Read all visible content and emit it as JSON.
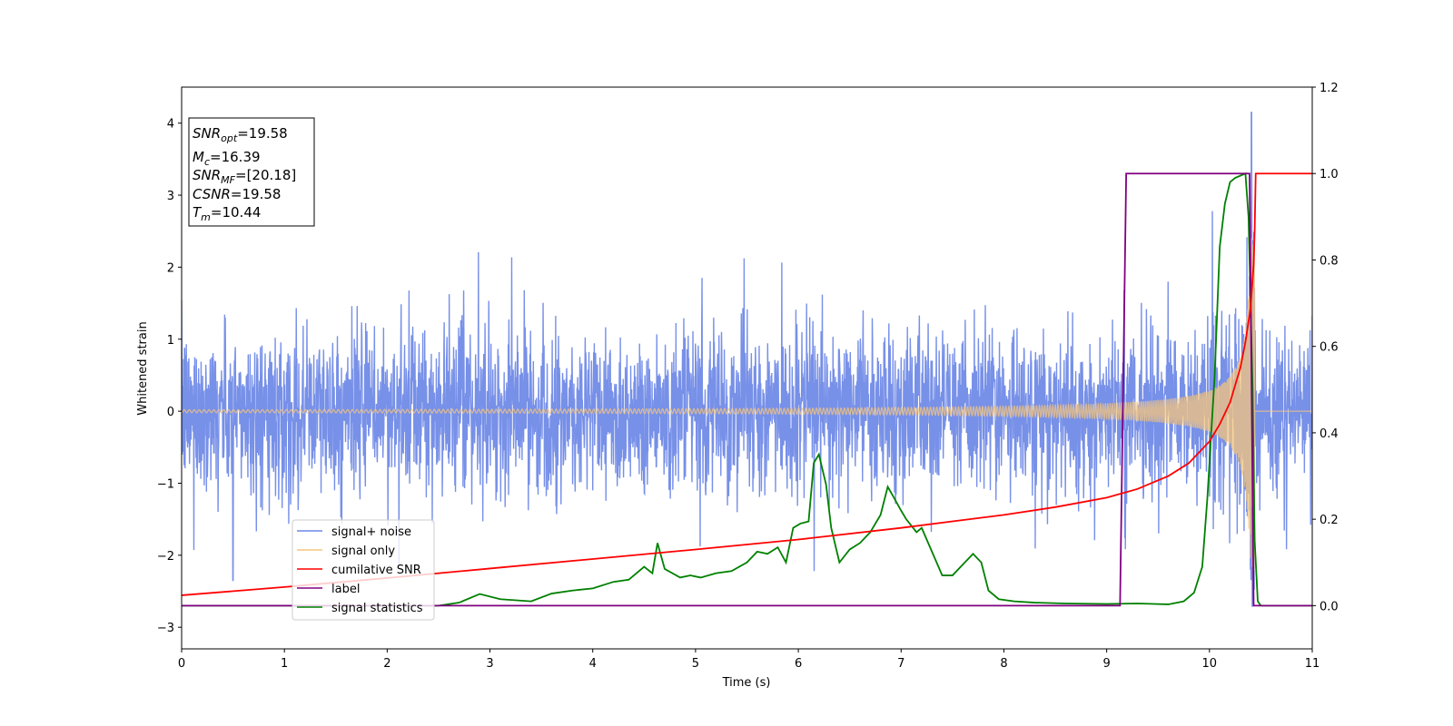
{
  "chart_data": {
    "type": "line",
    "title": "",
    "xlabel": "Time (s)",
    "ylabel": "Whitened strain",
    "xlim": [
      0,
      11
    ],
    "ylim": [
      -3.3,
      4.5
    ],
    "y2lim": [
      -0.1,
      1.2
    ],
    "x_ticks": [
      "0",
      "1",
      "2",
      "3",
      "4",
      "5",
      "6",
      "7",
      "8",
      "9",
      "10",
      "11"
    ],
    "y_ticks": [
      "−3",
      "−2",
      "−1",
      "0",
      "1",
      "2",
      "3",
      "4"
    ],
    "y2_ticks": [
      "0.0",
      "0.2",
      "0.4",
      "0.6",
      "0.8",
      "1.0",
      "1.2"
    ],
    "grid": false,
    "legend_position": "lower-left",
    "annotation": {
      "snr_opt": {
        "sym": "SNR",
        "sub": "opt",
        "val": "=19.58"
      },
      "mc": {
        "sym": "M",
        "sub": "c",
        "val": "=16.39"
      },
      "snr_mf": {
        "sym": "SNR",
        "sub": "MF",
        "val": "=[20.18]"
      },
      "csnr": {
        "sym": "CSNR",
        "val": "=19.58"
      },
      "tm": {
        "sym": "T",
        "sub": "m",
        "val": "=10.44"
      }
    },
    "series": [
      {
        "name": "signal+ noise",
        "axis": "left",
        "color": "#6b87e6",
        "description_values": {
          "noise_sigma": 0.55,
          "max_spike": 4.15,
          "min_spike": -2.35
        }
      },
      {
        "name": "signal only",
        "axis": "left",
        "color": "#f5c67e",
        "chirp": {
          "t_merge": 10.44,
          "amp_start": 0.02,
          "amp_end": 2.4
        }
      },
      {
        "name": "cumilative SNR",
        "axis": "right",
        "color": "#ff0000",
        "x": [
          0,
          1,
          2,
          3,
          4,
          5,
          6,
          7,
          7.5,
          8,
          8.5,
          9,
          9.3,
          9.6,
          9.8,
          10,
          10.1,
          10.2,
          10.3,
          10.35,
          10.4,
          10.43,
          10.44,
          10.45,
          11
        ],
        "y": [
          0.024,
          0.043,
          0.064,
          0.086,
          0.108,
          0.13,
          0.153,
          0.18,
          0.195,
          0.21,
          0.228,
          0.25,
          0.27,
          0.3,
          0.33,
          0.38,
          0.42,
          0.47,
          0.55,
          0.61,
          0.69,
          0.79,
          0.87,
          1.0,
          1.0
        ]
      },
      {
        "name": "label",
        "axis": "right",
        "color": "#800080",
        "x": [
          0,
          9.13,
          9.19,
          10.39,
          10.43,
          11
        ],
        "y": [
          0,
          0,
          1,
          1,
          0,
          0
        ]
      },
      {
        "name": "signal statistics",
        "axis": "right",
        "color": "#008000",
        "x": [
          0,
          2.5,
          2.7,
          2.9,
          3.1,
          3.4,
          3.6,
          3.8,
          4.0,
          4.2,
          4.35,
          4.5,
          4.58,
          4.63,
          4.7,
          4.85,
          4.95,
          5.05,
          5.2,
          5.35,
          5.5,
          5.6,
          5.7,
          5.8,
          5.88,
          5.95,
          6.02,
          6.1,
          6.15,
          6.2,
          6.27,
          6.32,
          6.4,
          6.5,
          6.6,
          6.7,
          6.8,
          6.87,
          6.93,
          7.0,
          7.05,
          7.15,
          7.2,
          7.3,
          7.4,
          7.5,
          7.6,
          7.7,
          7.78,
          7.85,
          7.95,
          8.1,
          8.3,
          8.6,
          9.0,
          9.3,
          9.6,
          9.75,
          9.85,
          9.93,
          9.98,
          10.05,
          10.1,
          10.15,
          10.2,
          10.25,
          10.3,
          10.35,
          10.38,
          10.42,
          10.44,
          10.47,
          10.5,
          10.55,
          11
        ],
        "y": [
          0,
          0,
          0.007,
          0.027,
          0.015,
          0.01,
          0.028,
          0.035,
          0.04,
          0.055,
          0.06,
          0.09,
          0.075,
          0.145,
          0.085,
          0.065,
          0.07,
          0.065,
          0.075,
          0.08,
          0.1,
          0.125,
          0.12,
          0.135,
          0.1,
          0.18,
          0.19,
          0.195,
          0.33,
          0.35,
          0.28,
          0.18,
          0.1,
          0.13,
          0.145,
          0.17,
          0.21,
          0.275,
          0.25,
          0.22,
          0.2,
          0.17,
          0.18,
          0.125,
          0.07,
          0.07,
          0.095,
          0.12,
          0.1,
          0.035,
          0.015,
          0.01,
          0.007,
          0.005,
          0.004,
          0.005,
          0.003,
          0.01,
          0.03,
          0.09,
          0.25,
          0.53,
          0.83,
          0.93,
          0.98,
          0.99,
          0.995,
          1.0,
          0.9,
          0.5,
          0.15,
          0.01,
          0,
          0,
          0
        ]
      }
    ]
  }
}
